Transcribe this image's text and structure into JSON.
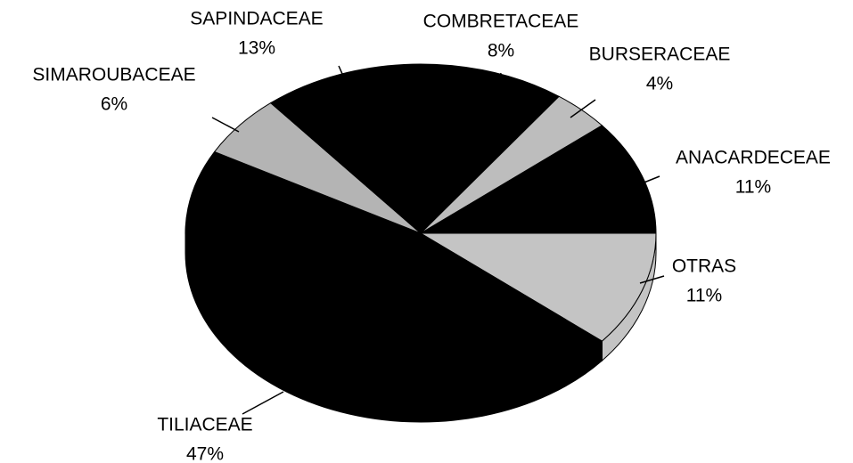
{
  "chart_data": {
    "type": "pie",
    "categories": [
      "OTRAS",
      "TILIACEAE",
      "SIMAROUBACEAE",
      "SAPINDACEAE",
      "COMBRETACEAE",
      "BURSERACEAE",
      "ANACARDECEAE"
    ],
    "values": [
      11,
      47,
      6,
      13,
      8,
      4,
      11
    ],
    "value_labels": [
      "11%",
      "47%",
      "6%",
      "13%",
      "8%",
      "4%",
      "11%"
    ],
    "colors": [
      "#c4c4c4",
      "#000000",
      "#b4b4b4",
      "#000000",
      "#000000",
      "#bdbdbd",
      "#000000"
    ]
  }
}
